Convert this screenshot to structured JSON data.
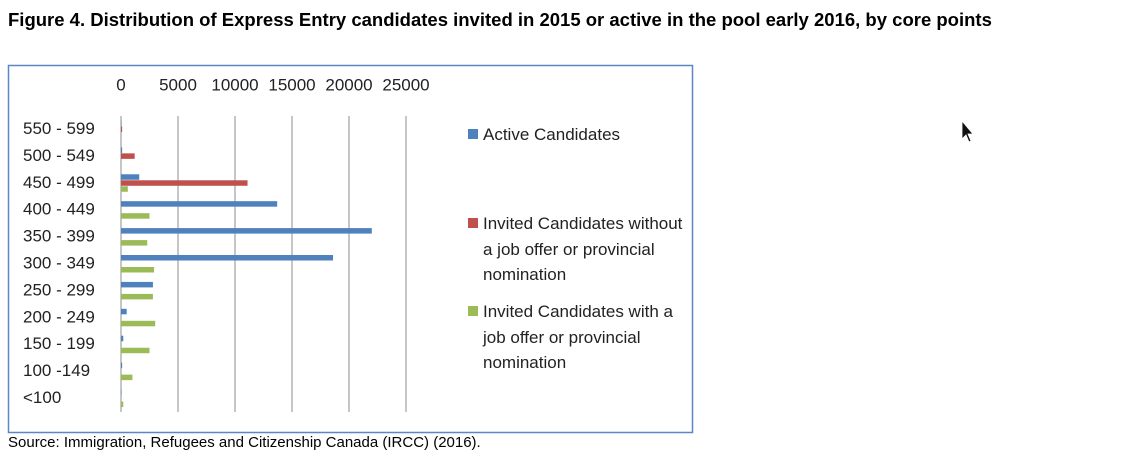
{
  "chart_data": {
    "type": "bar",
    "orientation": "horizontal",
    "title": "Figure 4. Distribution of Express Entry candidates invited in 2015 or active in the pool early 2016, by core points",
    "source": "Source: Immigration, Refugees and Citizenship Canada (IRCC) (2016).",
    "categories": [
      "550 - 599",
      "500 - 549",
      "450 - 499",
      "400 - 449",
      "350 - 399",
      "300 - 349",
      "250 - 299",
      "200 - 249",
      "150 - 199",
      "100 -149",
      "<100"
    ],
    "series": [
      {
        "name": "Active Candidates",
        "color": "#4f81bd",
        "values": [
          50,
          100,
          1600,
          13700,
          22000,
          18600,
          2800,
          500,
          200,
          100,
          50
        ]
      },
      {
        "name": "Invited Candidates without a job offer or provincial nomination",
        "color": "#c0504d",
        "values": [
          100,
          1200,
          11100,
          0,
          0,
          0,
          0,
          0,
          0,
          0,
          0
        ]
      },
      {
        "name": "Invited Candidates with a job offer or provincial nomination",
        "color": "#9bbb59",
        "values": [
          0,
          0,
          600,
          2500,
          2300,
          2900,
          2800,
          3000,
          2500,
          1000,
          200
        ]
      }
    ],
    "xlim": [
      0,
      25000
    ],
    "xticks": [
      0,
      5000,
      10000,
      15000,
      20000,
      25000
    ],
    "grid": true,
    "legend": "right"
  }
}
